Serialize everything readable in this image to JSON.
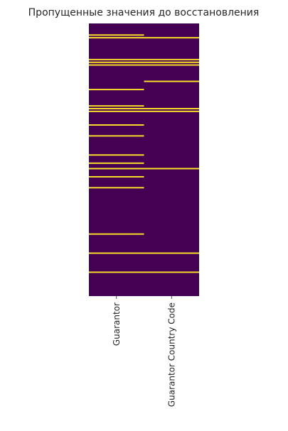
{
  "chart_data": {
    "type": "heatmap",
    "title": "Пропущенные значения до восстановления",
    "columns": [
      "Guarantor",
      "Guarantor Country Code"
    ],
    "row_count": 100,
    "value_meaning": "1 = missing value, 0 = present",
    "missing_rows": {
      "Guarantor": [
        4,
        5,
        13,
        14,
        15,
        24,
        30,
        31,
        32,
        37,
        41,
        48,
        51,
        53,
        56,
        60,
        77,
        84,
        91
      ],
      "Guarantor Country Code": [
        5,
        13,
        14,
        15,
        21,
        31,
        32,
        53,
        84,
        91
      ]
    },
    "colors": {
      "present": "#440154",
      "missing": "#fde725"
    },
    "show_y_ticks": false,
    "grid": false
  }
}
